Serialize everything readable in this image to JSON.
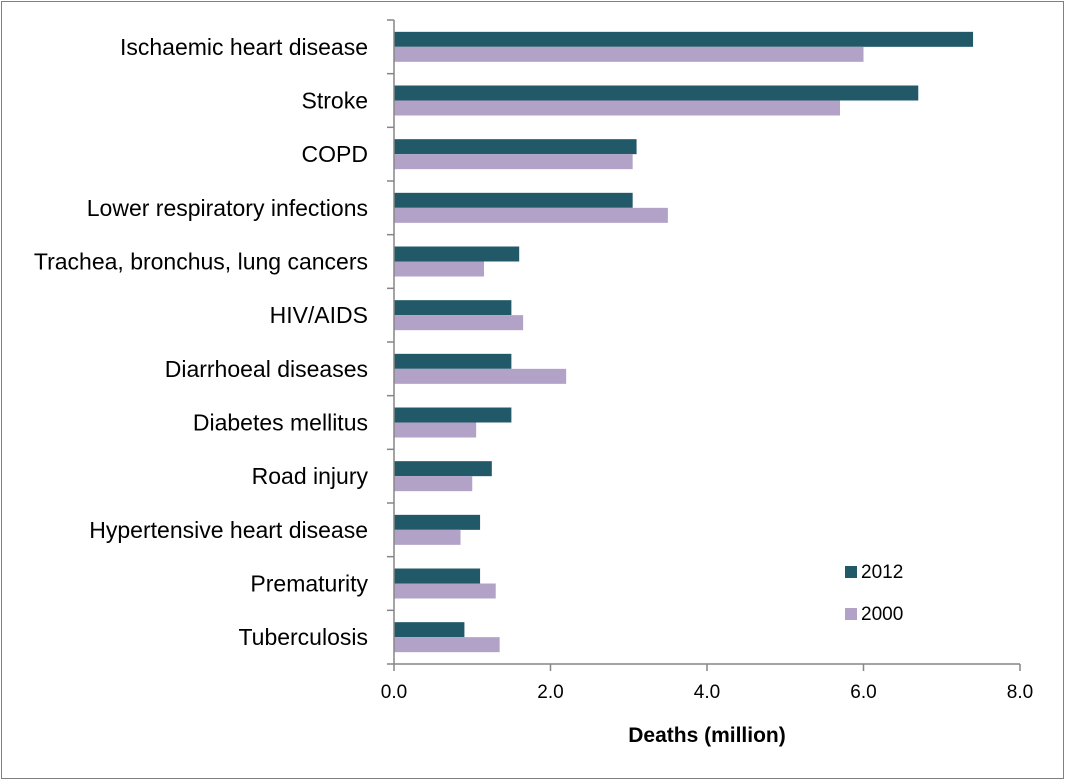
{
  "chart_data": {
    "type": "bar",
    "orientation": "horizontal",
    "title": "",
    "xlabel": "Deaths (million)",
    "ylabel": "",
    "xlim": [
      0,
      8
    ],
    "x_ticks": [
      "0.0",
      "2.0",
      "4.0",
      "6.0",
      "8.0"
    ],
    "grid": false,
    "legend_position": "bottom-right",
    "categories": [
      "Ischaemic heart disease",
      "Stroke",
      "COPD",
      "Lower respiratory infections",
      "Trachea, bronchus, lung cancers",
      "HIV/AIDS",
      "Diarrhoeal diseases",
      "Diabetes mellitus",
      "Road injury",
      "Hypertensive heart disease",
      "Prematurity",
      "Tuberculosis"
    ],
    "series": [
      {
        "name": "2012",
        "color": "#215968",
        "values": [
          7.4,
          6.7,
          3.1,
          3.05,
          1.6,
          1.5,
          1.5,
          1.5,
          1.25,
          1.1,
          1.1,
          0.9
        ]
      },
      {
        "name": "2000",
        "color": "#b2a2c7",
        "values": [
          6.0,
          5.7,
          3.05,
          3.5,
          1.15,
          1.65,
          2.2,
          1.05,
          1.0,
          0.85,
          1.3,
          1.35
        ]
      }
    ]
  }
}
